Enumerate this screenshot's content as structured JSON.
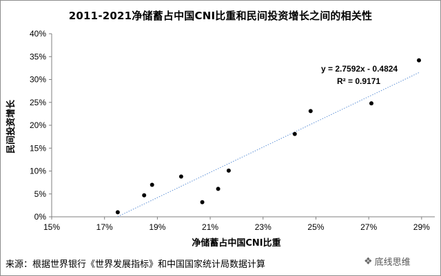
{
  "chart_data": {
    "type": "scatter",
    "title": "2011-2021净储蓄占中国CNI比重和民间投资增长之间的相关性",
    "xlabel": "净储蓄占中国CNI比重",
    "ylabel": "民间投资增长",
    "xlim": [
      15,
      29.5
    ],
    "ylim": [
      0,
      40
    ],
    "x_ticks": [
      "15%",
      "17%",
      "19%",
      "21%",
      "23%",
      "25%",
      "27%",
      "29%"
    ],
    "x_tick_values": [
      15,
      17,
      19,
      21,
      23,
      25,
      27,
      29
    ],
    "y_ticks": [
      "0%",
      "5%",
      "10%",
      "15%",
      "20%",
      "25%",
      "30%",
      "35%",
      "40%"
    ],
    "y_tick_values": [
      0,
      5,
      10,
      15,
      20,
      25,
      30,
      35,
      40
    ],
    "grid": false,
    "points": [
      {
        "x": 17.5,
        "y": 1.0
      },
      {
        "x": 18.5,
        "y": 4.7
      },
      {
        "x": 18.8,
        "y": 7.0
      },
      {
        "x": 19.9,
        "y": 8.8
      },
      {
        "x": 20.7,
        "y": 3.2
      },
      {
        "x": 21.3,
        "y": 6.1
      },
      {
        "x": 21.7,
        "y": 10.1
      },
      {
        "x": 24.2,
        "y": 18.1
      },
      {
        "x": 24.8,
        "y": 23.1
      },
      {
        "x": 27.1,
        "y": 24.8
      },
      {
        "x": 28.9,
        "y": 34.2
      }
    ],
    "trendline": {
      "slope": 2.7592,
      "intercept": -0.4824,
      "x_range": [
        17.5,
        28.9
      ],
      "equation": "y = 2.7592x - 0.4824",
      "r_squared": "R² = 0.9171",
      "color": "#5b8fd6"
    },
    "point_color": "#000000"
  },
  "footer": {
    "source": "来源：根据世界银行《世界发展指标》和中国国家统计局数据计算",
    "watermark": "底线思维",
    "watermark_icon": "wechat-icon"
  }
}
